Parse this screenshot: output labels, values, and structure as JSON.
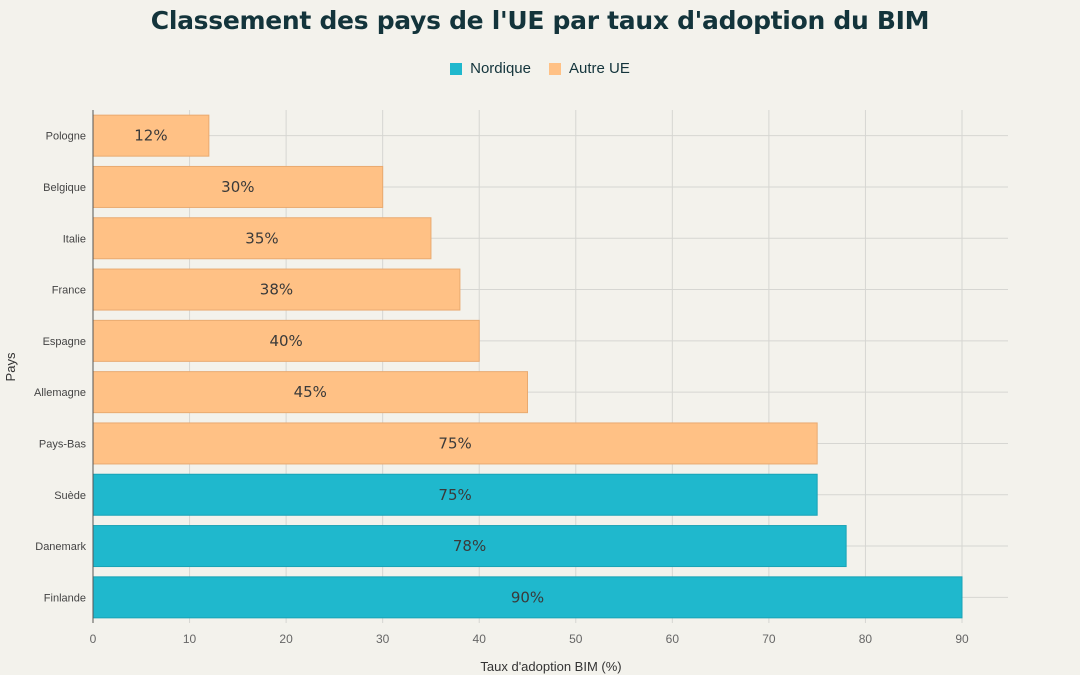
{
  "chart_data": {
    "type": "bar",
    "orientation": "horizontal",
    "title": "Classement des pays de l'UE par taux d'adoption du BIM",
    "xlabel": "Taux d'adoption BIM (%)",
    "ylabel": "Pays",
    "xlim": [
      0,
      95
    ],
    "xticks": [
      0,
      10,
      20,
      30,
      40,
      50,
      60,
      70,
      80,
      90
    ],
    "grid": true,
    "legend_position": "top-center",
    "series": [
      {
        "name": "Nordique",
        "color": "#1fb8cd"
      },
      {
        "name": "Autre UE",
        "color": "#ffc185"
      }
    ],
    "categories": [
      "Pologne",
      "Belgique",
      "Italie",
      "France",
      "Espagne",
      "Allemagne",
      "Pays-Bas",
      "Suède",
      "Danemark",
      "Finlande"
    ],
    "values": [
      12,
      30,
      35,
      38,
      40,
      45,
      75,
      75,
      78,
      90
    ],
    "data_labels": [
      "12%",
      "30%",
      "35%",
      "38%",
      "40%",
      "45%",
      "75%",
      "75%",
      "78%",
      "90%"
    ],
    "groups": [
      "Autre UE",
      "Autre UE",
      "Autre UE",
      "Autre UE",
      "Autre UE",
      "Autre UE",
      "Autre UE",
      "Nordique",
      "Nordique",
      "Nordique"
    ]
  }
}
